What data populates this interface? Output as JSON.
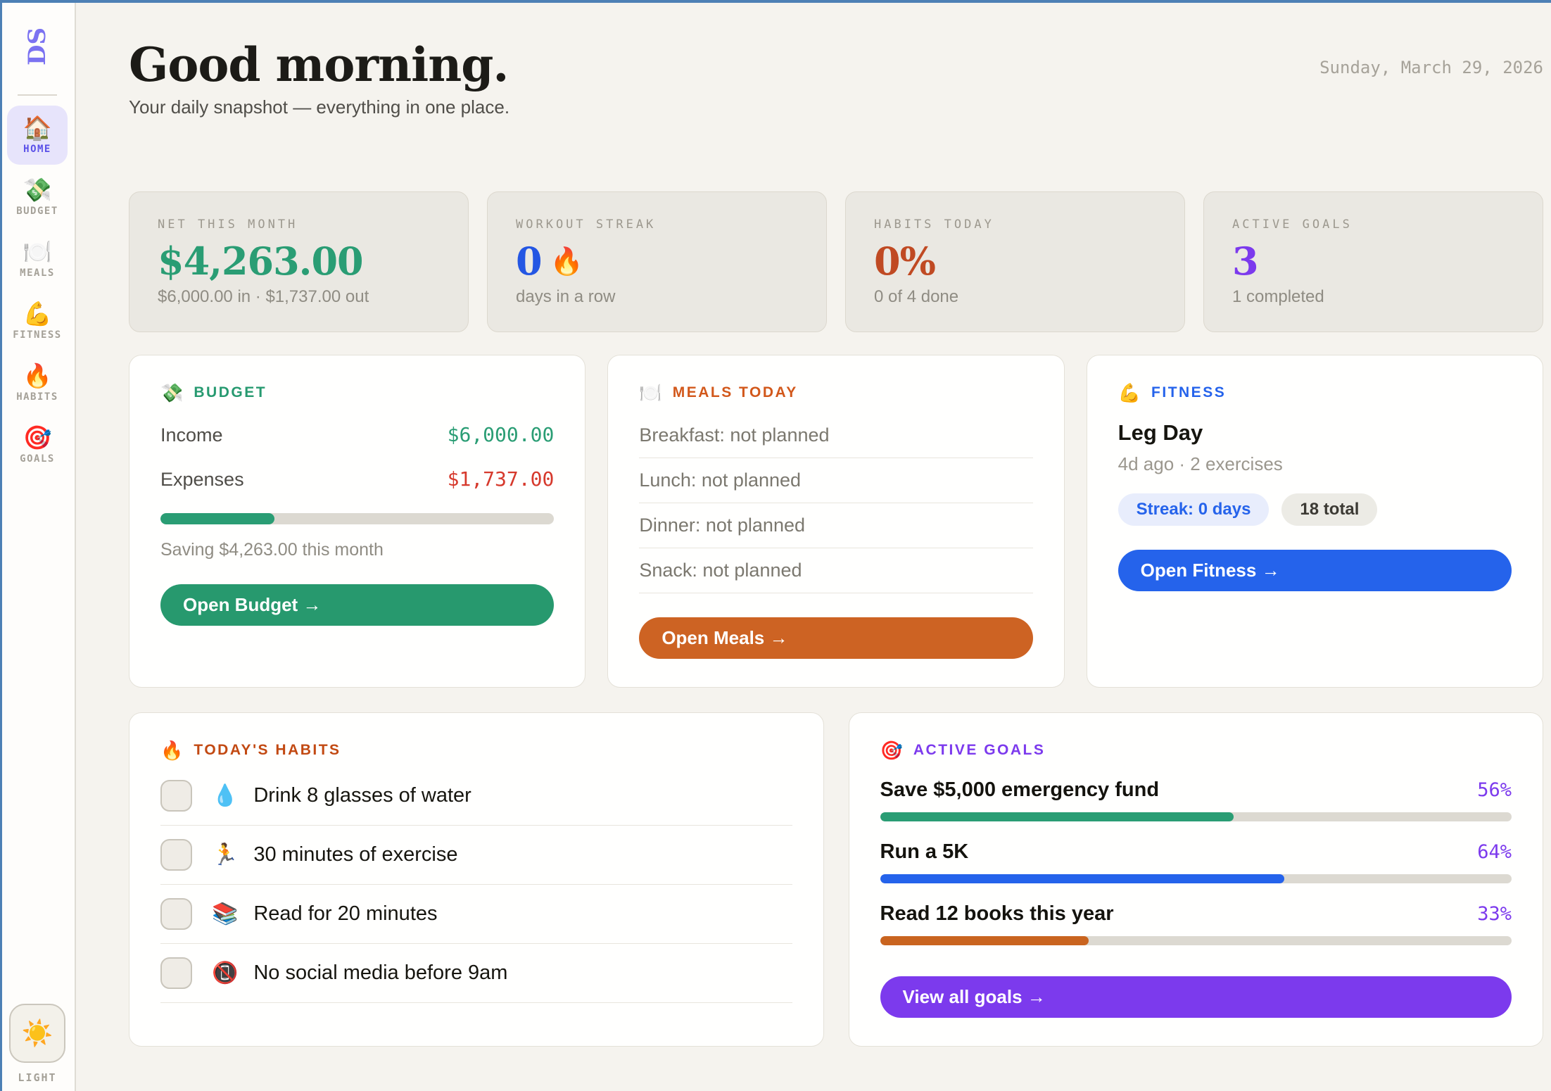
{
  "window": {
    "date": "Sunday, March 29, 2026"
  },
  "sidebar": {
    "logo": "DS",
    "items": [
      {
        "icon": "🏠",
        "label": "HOME",
        "active": true
      },
      {
        "icon": "💸",
        "label": "BUDGET",
        "active": false
      },
      {
        "icon": "🍽️",
        "label": "MEALS",
        "active": false
      },
      {
        "icon": "💪",
        "label": "FITNESS",
        "active": false
      },
      {
        "icon": "🔥",
        "label": "HABITS",
        "active": false
      },
      {
        "icon": "🎯",
        "label": "GOALS",
        "active": false
      }
    ],
    "theme_toggle": {
      "icon": "☀️",
      "label": "LIGHT"
    }
  },
  "header": {
    "title": "Good morning.",
    "subtitle": "Your daily snapshot — everything in one place."
  },
  "stats": [
    {
      "label": "NET THIS MONTH",
      "value": "$4,263.00",
      "value_color": "#2a9d74",
      "sub": "$6,000.00 in · $1,737.00 out"
    },
    {
      "label": "WORKOUT STREAK",
      "value": "0",
      "suffix_icon": "🔥",
      "value_color": "#2456e3",
      "sub": "days in a row"
    },
    {
      "label": "HABITS TODAY",
      "value": "0%",
      "value_color": "#c04a23",
      "sub": "0 of 4 done"
    },
    {
      "label": "ACTIVE GOALS",
      "value": "3",
      "value_color": "#7c3aed",
      "sub": "1 completed"
    }
  ],
  "budget": {
    "icon": "💸",
    "title": "BUDGET",
    "accent": "#279a70",
    "income_label": "Income",
    "income_value": "$6,000.00",
    "income_color": "#2a9d74",
    "expenses_label": "Expenses",
    "expenses_value": "$1,737.00",
    "expenses_color": "#d6392c",
    "progress_pct": 29,
    "bar_color": "#2a9d74",
    "saving_text": "Saving $4,263.00 this month",
    "button_label": "Open Budget →",
    "button_bg": "#27996e"
  },
  "meals": {
    "icon": "🍽️",
    "title": "MEALS TODAY",
    "accent": "#d2581b",
    "rows": [
      "Breakfast: not planned",
      "Lunch: not planned",
      "Dinner: not planned",
      "Snack: not planned"
    ],
    "button_label": "Open Meals →",
    "button_bg": "#cd6323"
  },
  "fitness": {
    "icon": "💪",
    "title": "FITNESS",
    "accent": "#2563eb",
    "workout_name": "Leg Day",
    "workout_meta": "4d ago · 2 exercises",
    "streak_badge": "Streak: 0 days",
    "total_badge": "18 total",
    "button_label": "Open Fitness →",
    "button_bg": "#2563eb"
  },
  "habits": {
    "icon": "🔥",
    "title": "TODAY'S HABITS",
    "accent": "#c24912",
    "items": [
      {
        "icon": "💧",
        "text": "Drink 8 glasses of water"
      },
      {
        "icon": "🏃",
        "text": "30 minutes of exercise"
      },
      {
        "icon": "📚",
        "text": "Read for 20 minutes"
      },
      {
        "icon": "📵",
        "text": "No social media before 9am"
      }
    ]
  },
  "goals": {
    "icon": "🎯",
    "title": "ACTIVE GOALS",
    "accent": "#7c3aed",
    "items": [
      {
        "name": "Save $5,000 emergency fund",
        "pct": "56%",
        "value": 56,
        "color": "#2a9d74"
      },
      {
        "name": "Run a 5K",
        "pct": "64%",
        "value": 64,
        "color": "#2563eb"
      },
      {
        "name": "Read 12 books this year",
        "pct": "33%",
        "value": 33,
        "color": "#c9641f"
      }
    ],
    "button_label": "View all goals →",
    "button_bg": "#7c3aed"
  }
}
